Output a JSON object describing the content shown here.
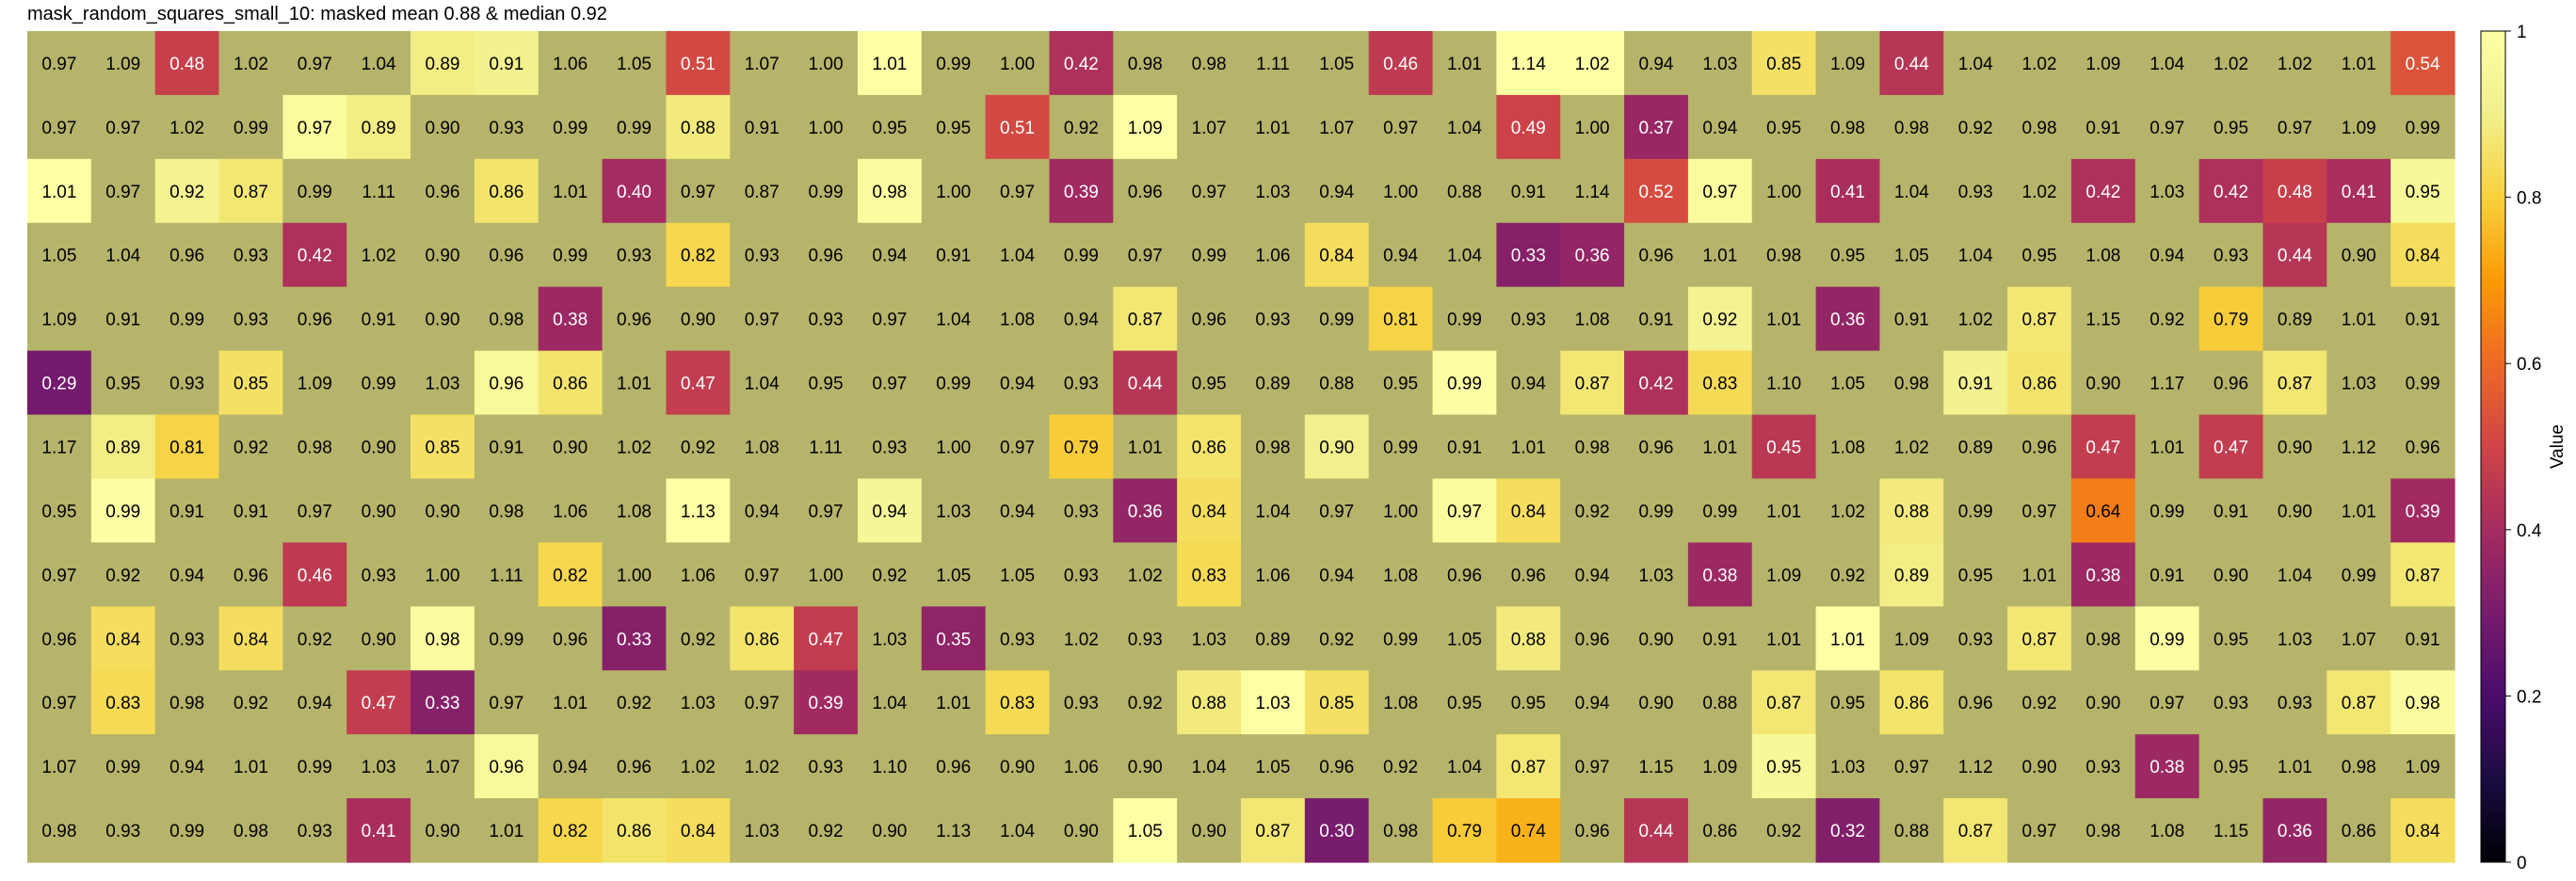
{
  "chart_data": {
    "type": "heatmap",
    "title": "mask_random_squares_small_10: masked mean 0.88 & median 0.92",
    "colorbar": {
      "label": "Value",
      "range": [
        0,
        1
      ],
      "ticks": [
        "0",
        "0.2",
        "0.4",
        "0.6",
        "0.8",
        "1"
      ],
      "colormap": "inferno"
    },
    "mask_color": "#b5b46a",
    "values": [
      [
        0.97,
        1.09,
        0.48,
        1.02,
        0.97,
        1.04,
        0.89,
        0.91,
        1.06,
        1.05,
        0.51,
        1.07,
        1.0,
        1.01,
        0.99,
        1.0,
        0.42,
        0.98,
        0.98,
        1.11,
        1.05,
        0.46,
        1.01,
        1.14,
        1.02,
        0.94,
        1.03,
        0.85,
        1.09,
        0.44,
        1.04,
        1.02,
        1.09,
        1.04,
        1.02,
        1.02,
        1.01,
        0.54
      ],
      [
        0.97,
        0.97,
        1.02,
        0.99,
        0.97,
        0.89,
        0.9,
        0.93,
        0.99,
        0.99,
        0.88,
        0.91,
        1.0,
        0.95,
        0.95,
        0.51,
        0.92,
        1.09,
        1.07,
        1.01,
        1.07,
        0.97,
        1.04,
        0.49,
        1.0,
        0.37,
        0.94,
        0.95,
        0.98,
        0.98,
        0.92,
        0.98,
        0.91,
        0.97,
        0.95,
        0.97,
        1.09,
        0.99
      ],
      [
        1.01,
        0.97,
        0.92,
        0.87,
        0.99,
        1.11,
        0.96,
        0.86,
        1.01,
        0.4,
        0.97,
        0.87,
        0.99,
        0.98,
        1.0,
        0.97,
        0.39,
        0.96,
        0.97,
        1.03,
        0.94,
        1.0,
        0.88,
        0.91,
        1.14,
        0.52,
        0.97,
        1.0,
        0.41,
        1.04,
        0.93,
        1.02,
        0.42,
        1.03,
        0.42,
        0.48,
        0.41,
        0.95
      ],
      [
        1.05,
        1.04,
        0.96,
        0.93,
        0.42,
        1.02,
        0.9,
        0.96,
        0.99,
        0.93,
        0.82,
        0.93,
        0.96,
        0.94,
        0.91,
        1.04,
        0.99,
        0.97,
        0.99,
        1.06,
        0.84,
        0.94,
        1.04,
        0.33,
        0.36,
        0.96,
        1.01,
        0.98,
        0.95,
        1.05,
        1.04,
        0.95,
        1.08,
        0.94,
        0.93,
        0.44,
        0.9,
        0.84
      ],
      [
        1.09,
        0.91,
        0.99,
        0.93,
        0.96,
        0.91,
        0.9,
        0.98,
        0.38,
        0.96,
        0.9,
        0.97,
        0.93,
        0.97,
        1.04,
        1.08,
        0.94,
        0.87,
        0.96,
        0.93,
        0.99,
        0.81,
        0.99,
        0.93,
        1.08,
        0.91,
        0.92,
        1.01,
        0.36,
        0.91,
        1.02,
        0.87,
        1.15,
        0.92,
        0.79,
        0.89,
        1.01,
        0.91
      ],
      [
        0.29,
        0.95,
        0.93,
        0.85,
        1.09,
        0.99,
        1.03,
        0.96,
        0.86,
        1.01,
        0.47,
        1.04,
        0.95,
        0.97,
        0.99,
        0.94,
        0.93,
        0.44,
        0.95,
        0.89,
        0.88,
        0.95,
        0.99,
        0.94,
        0.87,
        0.42,
        0.83,
        1.1,
        1.05,
        0.98,
        0.91,
        0.86,
        0.9,
        1.17,
        0.96,
        0.87,
        1.03,
        0.99
      ],
      [
        1.17,
        0.89,
        0.81,
        0.92,
        0.98,
        0.9,
        0.85,
        0.91,
        0.9,
        1.02,
        0.92,
        1.08,
        1.11,
        0.93,
        1.0,
        0.97,
        0.79,
        1.01,
        0.86,
        0.98,
        0.9,
        0.99,
        0.91,
        1.01,
        0.98,
        0.96,
        1.01,
        0.45,
        1.08,
        1.02,
        0.89,
        0.96,
        0.47,
        1.01,
        0.47,
        0.9,
        1.12,
        0.96
      ],
      [
        0.95,
        0.99,
        0.91,
        0.91,
        0.97,
        0.9,
        0.9,
        0.98,
        1.06,
        1.08,
        1.13,
        0.94,
        0.97,
        0.94,
        1.03,
        0.94,
        0.93,
        0.36,
        0.84,
        1.04,
        0.97,
        1.0,
        0.97,
        0.84,
        0.92,
        0.99,
        0.99,
        1.01,
        1.02,
        0.88,
        0.99,
        0.97,
        0.64,
        0.99,
        0.91,
        0.9,
        1.01,
        0.39
      ],
      [
        0.97,
        0.92,
        0.94,
        0.96,
        0.46,
        0.93,
        1.0,
        1.11,
        0.82,
        1.0,
        1.06,
        0.97,
        1.0,
        0.92,
        1.05,
        1.05,
        0.93,
        1.02,
        0.83,
        1.06,
        0.94,
        1.08,
        0.96,
        0.96,
        0.94,
        1.03,
        0.38,
        1.09,
        0.92,
        0.89,
        0.95,
        1.01,
        0.38,
        0.91,
        0.9,
        1.04,
        0.99,
        0.87
      ],
      [
        0.96,
        0.84,
        0.93,
        0.84,
        0.92,
        0.9,
        0.98,
        0.99,
        0.96,
        0.33,
        0.92,
        0.86,
        0.47,
        1.03,
        0.35,
        0.93,
        1.02,
        0.93,
        1.03,
        0.89,
        0.92,
        0.99,
        1.05,
        0.88,
        0.96,
        0.9,
        0.91,
        1.01,
        1.01,
        1.09,
        0.93,
        0.87,
        0.98,
        0.99,
        0.95,
        1.03,
        1.07,
        0.91
      ],
      [
        0.97,
        0.83,
        0.98,
        0.92,
        0.94,
        0.47,
        0.33,
        0.97,
        1.01,
        0.92,
        1.03,
        0.97,
        0.39,
        1.04,
        1.01,
        0.83,
        0.93,
        0.92,
        0.88,
        1.03,
        0.85,
        1.08,
        0.95,
        0.95,
        0.94,
        0.9,
        0.88,
        0.87,
        0.95,
        0.86,
        0.96,
        0.92,
        0.9,
        0.97,
        0.93,
        0.93,
        0.87,
        0.98
      ],
      [
        1.07,
        0.99,
        0.94,
        1.01,
        0.99,
        1.03,
        1.07,
        0.96,
        0.94,
        0.96,
        1.02,
        1.02,
        0.93,
        1.1,
        0.96,
        0.9,
        1.06,
        0.9,
        1.04,
        1.05,
        0.96,
        0.92,
        1.04,
        0.87,
        0.97,
        1.15,
        1.09,
        0.95,
        1.03,
        0.97,
        1.12,
        0.9,
        0.93,
        0.38,
        0.95,
        1.01,
        0.98,
        1.09
      ],
      [
        0.98,
        0.93,
        0.99,
        0.98,
        0.93,
        0.41,
        0.9,
        1.01,
        0.82,
        0.86,
        0.84,
        1.03,
        0.92,
        0.9,
        1.13,
        1.04,
        0.9,
        1.05,
        0.9,
        0.87,
        0.3,
        0.98,
        0.79,
        0.74,
        0.96,
        0.44,
        0.86,
        0.92,
        0.32,
        0.88,
        0.87,
        0.97,
        0.98,
        1.08,
        1.15,
        0.36,
        0.86,
        0.84
      ]
    ],
    "unmasked": [
      [
        0,
        0,
        1,
        0,
        0,
        0,
        1,
        1,
        0,
        0,
        1,
        0,
        0,
        1,
        0,
        0,
        1,
        0,
        0,
        0,
        0,
        1,
        0,
        1,
        1,
        0,
        0,
        1,
        0,
        1,
        0,
        0,
        0,
        0,
        0,
        0,
        0,
        1
      ],
      [
        0,
        0,
        0,
        0,
        1,
        1,
        0,
        0,
        0,
        0,
        1,
        0,
        0,
        0,
        0,
        1,
        0,
        1,
        0,
        0,
        0,
        0,
        0,
        1,
        0,
        1,
        0,
        0,
        0,
        0,
        0,
        0,
        0,
        0,
        0,
        0,
        0,
        0
      ],
      [
        1,
        0,
        1,
        1,
        0,
        0,
        0,
        1,
        0,
        1,
        0,
        0,
        0,
        1,
        0,
        0,
        1,
        0,
        0,
        0,
        0,
        0,
        0,
        0,
        0,
        1,
        1,
        0,
        1,
        0,
        0,
        0,
        1,
        0,
        1,
        1,
        1,
        1
      ],
      [
        0,
        0,
        0,
        0,
        1,
        0,
        0,
        0,
        0,
        0,
        1,
        0,
        0,
        0,
        0,
        0,
        0,
        0,
        0,
        0,
        1,
        0,
        0,
        1,
        1,
        0,
        0,
        0,
        0,
        0,
        0,
        0,
        0,
        0,
        0,
        1,
        0,
        1
      ],
      [
        0,
        0,
        0,
        0,
        0,
        0,
        0,
        0,
        1,
        0,
        0,
        0,
        0,
        0,
        0,
        0,
        0,
        1,
        0,
        0,
        0,
        1,
        0,
        0,
        0,
        0,
        1,
        0,
        1,
        0,
        0,
        1,
        0,
        0,
        1,
        0,
        0,
        0
      ],
      [
        1,
        0,
        0,
        1,
        0,
        0,
        0,
        1,
        1,
        0,
        1,
        0,
        0,
        0,
        0,
        0,
        0,
        1,
        0,
        0,
        0,
        0,
        1,
        0,
        1,
        1,
        1,
        0,
        0,
        0,
        1,
        1,
        0,
        0,
        0,
        1,
        0,
        0
      ],
      [
        0,
        1,
        1,
        0,
        0,
        0,
        1,
        0,
        0,
        0,
        0,
        0,
        0,
        0,
        0,
        0,
        1,
        0,
        1,
        0,
        1,
        0,
        0,
        0,
        0,
        0,
        0,
        1,
        0,
        0,
        0,
        0,
        1,
        0,
        1,
        0,
        0,
        0
      ],
      [
        0,
        1,
        0,
        0,
        0,
        0,
        0,
        0,
        0,
        0,
        1,
        0,
        0,
        1,
        0,
        0,
        0,
        1,
        1,
        0,
        0,
        0,
        1,
        1,
        0,
        0,
        0,
        0,
        0,
        1,
        0,
        0,
        1,
        0,
        0,
        0,
        0,
        1
      ],
      [
        0,
        0,
        0,
        0,
        1,
        0,
        0,
        0,
        1,
        0,
        0,
        0,
        0,
        0,
        0,
        0,
        0,
        0,
        1,
        0,
        0,
        0,
        0,
        0,
        0,
        0,
        1,
        0,
        0,
        1,
        0,
        0,
        1,
        0,
        0,
        0,
        0,
        1
      ],
      [
        0,
        1,
        0,
        1,
        0,
        0,
        1,
        0,
        0,
        1,
        0,
        1,
        1,
        0,
        1,
        0,
        0,
        0,
        0,
        0,
        0,
        0,
        0,
        1,
        0,
        0,
        0,
        0,
        1,
        0,
        0,
        1,
        0,
        1,
        0,
        0,
        0,
        0
      ],
      [
        0,
        1,
        0,
        0,
        0,
        1,
        1,
        0,
        0,
        0,
        0,
        0,
        1,
        0,
        0,
        1,
        0,
        0,
        1,
        1,
        1,
        0,
        0,
        0,
        0,
        0,
        0,
        1,
        0,
        1,
        0,
        0,
        0,
        0,
        0,
        0,
        1,
        1
      ],
      [
        0,
        0,
        0,
        0,
        0,
        0,
        0,
        1,
        0,
        0,
        0,
        0,
        0,
        0,
        0,
        0,
        0,
        0,
        0,
        0,
        0,
        0,
        0,
        1,
        0,
        0,
        0,
        1,
        0,
        0,
        0,
        0,
        0,
        1,
        0,
        0,
        0,
        0
      ],
      [
        0,
        0,
        0,
        0,
        0,
        1,
        0,
        0,
        1,
        1,
        1,
        0,
        0,
        0,
        0,
        0,
        0,
        1,
        0,
        1,
        1,
        0,
        1,
        1,
        0,
        1,
        0,
        0,
        1,
        0,
        1,
        0,
        0,
        0,
        0,
        1,
        0,
        1
      ]
    ]
  }
}
